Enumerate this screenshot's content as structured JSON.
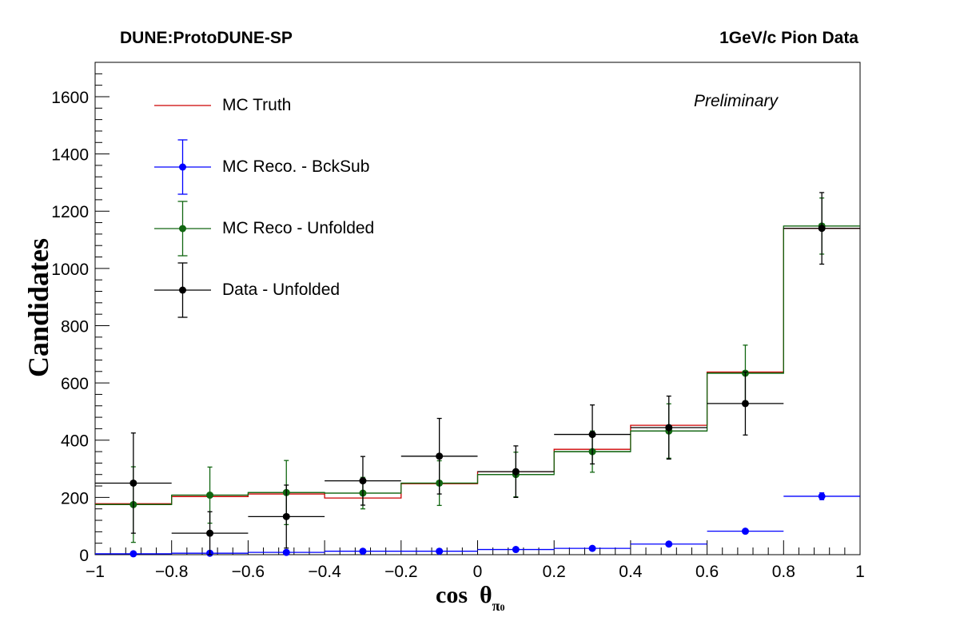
{
  "header": {
    "left": "DUNE:ProtoDUNE-SP",
    "right": "1GeV/c Pion Data",
    "preliminary": "Preliminary"
  },
  "chart_data": {
    "type": "histogram",
    "xlabel_main": "cos",
    "xlabel_theta": "θ",
    "xlabel_sub": "π",
    "xlabel_sup": "0",
    "ylabel": "Candidates",
    "xlim": [
      -1,
      1
    ],
    "ylim": [
      0,
      1720
    ],
    "x_ticks": [
      -1,
      -0.8,
      -0.6,
      -0.4,
      -0.2,
      0,
      0.2,
      0.4,
      0.6,
      0.8,
      1
    ],
    "x_tick_labels": [
      "−1",
      "−0.8",
      "−0.6",
      "−0.4",
      "−0.2",
      "0",
      "0.2",
      "0.4",
      "0.6",
      "0.8",
      "1"
    ],
    "y_ticks": [
      0,
      200,
      400,
      600,
      800,
      1000,
      1200,
      1400,
      1600
    ],
    "y_tick_labels": [
      "0",
      "200",
      "400",
      "600",
      "800",
      "1000",
      "1200",
      "1400",
      "1600"
    ],
    "bin_edges": [
      -1,
      -0.8,
      -0.6,
      -0.4,
      -0.2,
      0,
      0.2,
      0.4,
      0.6,
      0.8,
      1
    ],
    "series": [
      {
        "name": "MC Truth",
        "color": "#cc0000",
        "style": "step",
        "values": [
          178,
          203,
          212,
          198,
          248,
          290,
          368,
          452,
          638,
          1140
        ]
      },
      {
        "name": "MC Reco. - BckSub",
        "color": "#0000ff",
        "style": "points",
        "values": [
          3,
          5,
          8,
          12,
          12,
          18,
          22,
          37,
          82,
          204
        ],
        "errors": [
          2,
          2,
          2,
          2,
          2,
          3,
          3,
          4,
          6,
          12
        ]
      },
      {
        "name": "MC Reco - Unfolded",
        "color": "#116611",
        "style": "step_points",
        "values": [
          175,
          208,
          217,
          215,
          250,
          280,
          360,
          432,
          634,
          1148
        ],
        "errors": [
          132,
          98,
          112,
          55,
          78,
          78,
          72,
          95,
          98,
          98
        ]
      },
      {
        "name": "Data - Unfolded",
        "color": "#000000",
        "style": "points",
        "values": [
          250,
          75,
          133,
          258,
          344,
          290,
          420,
          444,
          528,
          1140
        ],
        "errors": [
          175,
          75,
          110,
          85,
          132,
          90,
          103,
          110,
          110,
          125
        ]
      }
    ],
    "legend_position": "top-left"
  }
}
